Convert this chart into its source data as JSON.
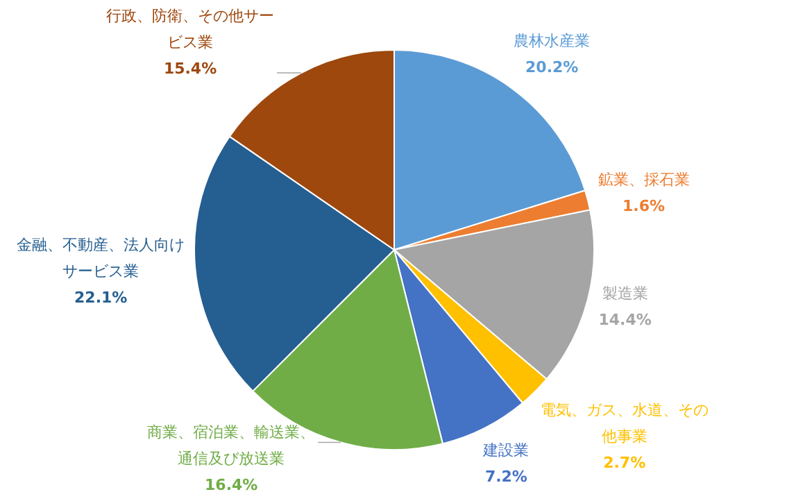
{
  "chart_data": {
    "type": "pie",
    "categories": [
      "農林水産業",
      "鉱業、採石業",
      "製造業",
      "電気、ガス、水道、その他事業",
      "建設業",
      "商業、宿泊業、輸送業、通信及び放送業",
      "金融、不動産、法人向けサービス業",
      "行政、防衛、その他サービス業"
    ],
    "values": [
      20.2,
      1.6,
      14.4,
      2.7,
      7.2,
      16.4,
      22.1,
      15.4
    ],
    "value_labels": [
      "20.2%",
      "1.6%",
      "14.4%",
      "2.7%",
      "7.2%",
      "16.4%",
      "22.1%",
      "15.4%"
    ],
    "colors": [
      "#5b9bd5",
      "#ed7d31",
      "#a5a5a5",
      "#ffc000",
      "#4472c4",
      "#70ad47",
      "#255e91",
      "#9e480e"
    ]
  }
}
